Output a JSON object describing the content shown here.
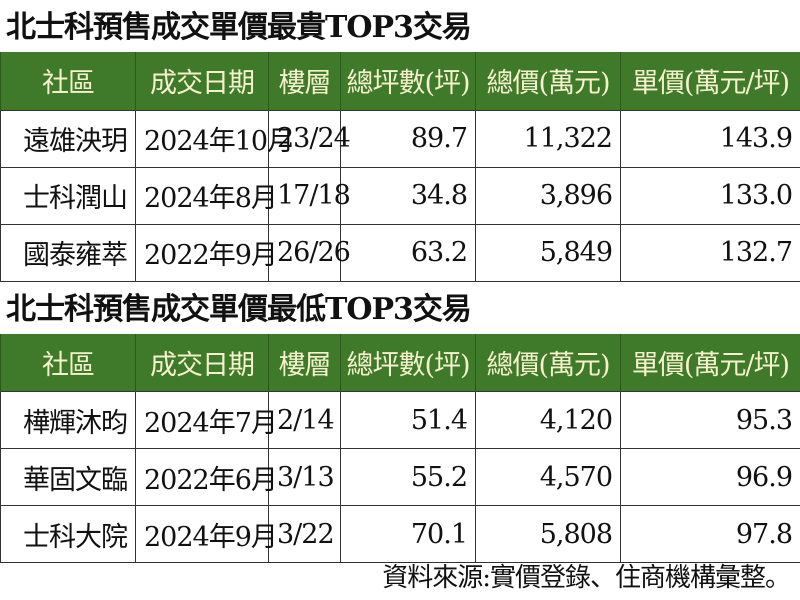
{
  "colors": {
    "header_bg": "#3f7a2a",
    "header_text": "#f4f1cc"
  },
  "columns": [
    "社區",
    "成交日期",
    "樓層",
    "總坪數(坪)",
    "總價(萬元)",
    "單價(萬元/坪)"
  ],
  "tables": [
    {
      "title": "北士科預售成交單價最貴TOP3交易",
      "rows": [
        [
          "遠雄泱玥",
          "2024年10月",
          "23/24",
          "89.7",
          "11,322",
          "143.9"
        ],
        [
          "士科潤山",
          "2024年8月",
          "17/18",
          "34.8",
          "3,896",
          "133.0"
        ],
        [
          "國泰雍萃",
          "2022年9月",
          "26/26",
          "63.2",
          "5,849",
          "132.7"
        ]
      ]
    },
    {
      "title": "北士科預售成交單價最低TOP3交易",
      "rows": [
        [
          "樺輝沐昀",
          "2024年7月",
          "2/14",
          "51.4",
          "4,120",
          "95.3"
        ],
        [
          "華固文臨",
          "2022年6月",
          "3/13",
          "55.2",
          "4,570",
          "96.9"
        ],
        [
          "士科大院",
          "2024年9月",
          "3/22",
          "70.1",
          "5,808",
          "97.8"
        ]
      ]
    }
  ],
  "footer": "資料來源:實價登錄、住商機構彙整。"
}
